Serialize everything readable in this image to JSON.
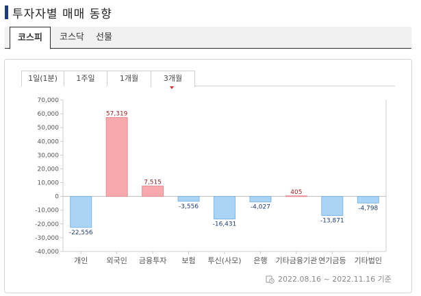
{
  "page": {
    "title": "투자자별 매매 동향"
  },
  "market_tabs": [
    {
      "label": "코스피",
      "active": true
    },
    {
      "label": "코스닥",
      "active": false
    },
    {
      "label": "선물",
      "active": false
    }
  ],
  "period_tabs": [
    {
      "label": "1일(1분)",
      "active": false
    },
    {
      "label": "1주일",
      "active": false
    },
    {
      "label": "1개월",
      "active": false
    },
    {
      "label": "3개월",
      "active": true
    }
  ],
  "chart_data": {
    "type": "bar",
    "categories": [
      "개인",
      "외국인",
      "금융투자",
      "보험",
      "투신(사모)",
      "은행",
      "기타금융기관",
      "연기금등",
      "기타법인"
    ],
    "values": [
      -22556,
      57319,
      7515,
      -3556,
      -16431,
      -4027,
      405,
      -13871,
      -4798
    ],
    "value_labels": [
      "-22,556",
      "57,319",
      "7,515",
      "-3,556",
      "-16,431",
      "-4,027",
      "405",
      "-13,871",
      "-4,798"
    ],
    "ylim": [
      -40000,
      70000
    ],
    "yticks": [
      70000,
      60000,
      50000,
      40000,
      30000,
      20000,
      10000,
      0,
      -10000,
      -20000,
      -30000,
      -40000
    ],
    "ytick_labels": [
      "70,000",
      "60,000",
      "50,000",
      "40,000",
      "30,000",
      "20,000",
      "10,000",
      "0",
      "-10,000",
      "-20,000",
      "-30,000",
      "-40,000"
    ],
    "grid": false,
    "colors": {
      "positive": "#f7a9ae",
      "negative": "#a9d4f5",
      "positive_label": "#9b1f24",
      "negative_label": "#1f3b6e",
      "axis": "#cccccc"
    }
  },
  "footer": {
    "icon": "clock-icon",
    "date_range": "2022.08.16 ~ 2022.11.16 기준"
  }
}
